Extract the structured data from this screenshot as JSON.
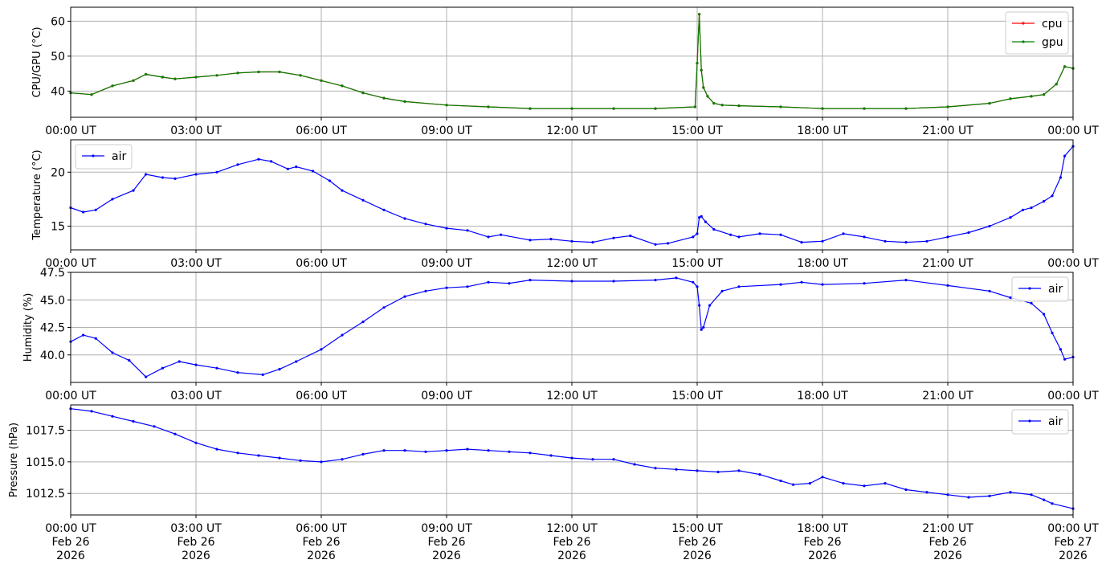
{
  "figure": {
    "x_start_hours": 0,
    "x_end_hours": 24,
    "x_tick_labels": [
      "00:00 UT",
      "03:00 UT",
      "06:00 UT",
      "09:00 UT",
      "12:00 UT",
      "15:00 UT",
      "18:00 UT",
      "21:00 UT",
      "00:00 UT"
    ],
    "x_tick_date_labels": [
      "Feb 26",
      "Feb 26",
      "Feb 26",
      "Feb 26",
      "Feb 26",
      "Feb 26",
      "Feb 26",
      "Feb 26",
      "Feb 27"
    ],
    "x_tick_year_labels": [
      "2026",
      "2026",
      "2026",
      "2026",
      "2026",
      "2026",
      "2026",
      "2026",
      "2026"
    ],
    "colors": {
      "cpu": "#ff0000",
      "gpu": "#008000",
      "air": "#0000ff",
      "grid": "#b0b0b0"
    }
  },
  "chart_data": [
    {
      "type": "line",
      "ylabel": "CPU/GPU (°C)",
      "ylim": [
        32.5,
        64
      ],
      "yticks": [
        40,
        50,
        60
      ],
      "grid": true,
      "legend": "upper right",
      "x_unit": "hours since 2026-02-26 00:00 UT",
      "series": [
        {
          "name": "cpu",
          "color": "#ff0000",
          "x": [
            0,
            0.5,
            1,
            1.5,
            1.8,
            2.2,
            2.5,
            3,
            3.5,
            4,
            4.5,
            5,
            5.5,
            6,
            6.5,
            7,
            7.5,
            8,
            9,
            10,
            11,
            12,
            13,
            14,
            14.95,
            15,
            15.05,
            15.1,
            15.15,
            15.25,
            15.4,
            15.6,
            16,
            17,
            18,
            19,
            20,
            21,
            22,
            22.5,
            23,
            23.3,
            23.6,
            23.8,
            24
          ],
          "y": [
            39.5,
            39,
            41.5,
            43,
            44.8,
            44,
            43.5,
            44,
            44.5,
            45.2,
            45.5,
            45.5,
            44.5,
            43,
            41.5,
            39.5,
            38,
            37,
            36,
            35.5,
            35,
            35,
            35,
            35,
            35.5,
            48,
            62,
            46,
            41,
            38.5,
            36.5,
            36,
            35.8,
            35.5,
            35,
            35,
            35,
            35.5,
            36.5,
            37.8,
            38.5,
            39,
            42,
            47,
            46.5
          ]
        },
        {
          "name": "gpu",
          "color": "#008000",
          "x": [
            0,
            0.5,
            1,
            1.5,
            1.8,
            2.2,
            2.5,
            3,
            3.5,
            4,
            4.5,
            5,
            5.5,
            6,
            6.5,
            7,
            7.5,
            8,
            9,
            10,
            11,
            12,
            13,
            14,
            14.95,
            15,
            15.05,
            15.1,
            15.15,
            15.25,
            15.4,
            15.6,
            16,
            17,
            18,
            19,
            20,
            21,
            22,
            22.5,
            23,
            23.3,
            23.6,
            23.8,
            24
          ],
          "y": [
            39.5,
            39,
            41.5,
            43,
            44.8,
            44,
            43.5,
            44,
            44.5,
            45.2,
            45.5,
            45.5,
            44.5,
            43,
            41.5,
            39.5,
            38,
            37,
            36,
            35.5,
            35,
            35,
            35,
            35,
            35.5,
            48,
            62,
            46,
            41,
            38.5,
            36.5,
            36,
            35.8,
            35.5,
            35,
            35,
            35,
            35.5,
            36.5,
            37.8,
            38.5,
            39,
            42,
            47,
            46.5
          ]
        }
      ]
    },
    {
      "type": "line",
      "ylabel": "Temperature (°C)",
      "ylim": [
        12.8,
        23
      ],
      "yticks": [
        15,
        20
      ],
      "grid": true,
      "legend": "upper left",
      "x_unit": "hours since 2026-02-26 00:00 UT",
      "series": [
        {
          "name": "air",
          "color": "#0000ff",
          "x": [
            0,
            0.3,
            0.6,
            1,
            1.5,
            1.8,
            2.2,
            2.5,
            3,
            3.5,
            4,
            4.5,
            4.8,
            5.2,
            5.4,
            5.8,
            6.2,
            6.5,
            7,
            7.5,
            8,
            8.5,
            9,
            9.5,
            10,
            10.3,
            11,
            11.5,
            12,
            12.5,
            13,
            13.4,
            14,
            14.3,
            14.9,
            15,
            15.05,
            15.1,
            15.2,
            15.4,
            15.8,
            16,
            16.5,
            17,
            17.5,
            18,
            18.5,
            19,
            19.5,
            20,
            20.5,
            21,
            21.5,
            22,
            22.5,
            22.8,
            23,
            23.3,
            23.5,
            23.7,
            23.8,
            24
          ],
          "y": [
            16.7,
            16.3,
            16.5,
            17.5,
            18.3,
            19.8,
            19.5,
            19.4,
            19.8,
            20.0,
            20.7,
            21.2,
            21.0,
            20.3,
            20.5,
            20.1,
            19.2,
            18.3,
            17.4,
            16.5,
            15.7,
            15.2,
            14.8,
            14.6,
            14.0,
            14.2,
            13.7,
            13.8,
            13.6,
            13.5,
            13.9,
            14.1,
            13.3,
            13.4,
            14.0,
            14.3,
            15.8,
            15.9,
            15.4,
            14.7,
            14.2,
            14.0,
            14.3,
            14.2,
            13.5,
            13.6,
            14.3,
            14.0,
            13.6,
            13.5,
            13.6,
            14.0,
            14.4,
            15.0,
            15.8,
            16.5,
            16.7,
            17.3,
            17.8,
            19.5,
            21.5,
            22.4
          ]
        }
      ]
    },
    {
      "type": "line",
      "ylabel": "Humidity (%)",
      "ylim": [
        37.5,
        47.5
      ],
      "yticks": [
        40.0,
        42.5,
        45.0,
        47.5
      ],
      "ytick_labels": [
        "40.0",
        "42.5",
        "45.0",
        "47.5"
      ],
      "grid": true,
      "legend": "upper right",
      "x_unit": "hours since 2026-02-26 00:00 UT",
      "series": [
        {
          "name": "air",
          "color": "#0000ff",
          "x": [
            0,
            0.3,
            0.6,
            1,
            1.4,
            1.8,
            2.2,
            2.6,
            3,
            3.5,
            4,
            4.6,
            5,
            5.4,
            6,
            6.5,
            7,
            7.5,
            8,
            8.5,
            9,
            9.5,
            10,
            10.5,
            11,
            12,
            13,
            14,
            14.5,
            14.9,
            15,
            15.05,
            15.1,
            15.15,
            15.3,
            15.6,
            16,
            17,
            17.5,
            18,
            19,
            20,
            21,
            22,
            22.5,
            23,
            23.3,
            23.5,
            23.7,
            23.8,
            24
          ],
          "y": [
            41.2,
            41.8,
            41.5,
            40.2,
            39.5,
            38.0,
            38.8,
            39.4,
            39.1,
            38.8,
            38.4,
            38.2,
            38.7,
            39.4,
            40.5,
            41.8,
            43.0,
            44.3,
            45.3,
            45.8,
            46.1,
            46.2,
            46.6,
            46.5,
            46.8,
            46.7,
            46.7,
            46.8,
            47.0,
            46.6,
            46.2,
            44.5,
            42.3,
            42.5,
            44.5,
            45.8,
            46.2,
            46.4,
            46.6,
            46.4,
            46.5,
            46.8,
            46.3,
            45.8,
            45.2,
            44.7,
            43.7,
            42.0,
            40.5,
            39.6,
            39.8
          ]
        }
      ]
    },
    {
      "type": "line",
      "ylabel": "Pressure (hPa)",
      "ylim": [
        1010.8,
        1019.5
      ],
      "yticks": [
        1012.5,
        1015.0,
        1017.5
      ],
      "ytick_labels": [
        "1012.5",
        "1015.0",
        "1017.5"
      ],
      "grid": true,
      "legend": "upper right",
      "x_unit": "hours since 2026-02-26 00:00 UT",
      "series": [
        {
          "name": "air",
          "color": "#0000ff",
          "x": [
            0,
            0.5,
            1,
            1.5,
            2,
            2.5,
            3,
            3.5,
            4,
            4.5,
            5,
            5.5,
            6,
            6.5,
            7,
            7.5,
            8,
            8.5,
            9,
            9.5,
            10,
            10.5,
            11,
            11.5,
            12,
            12.5,
            13,
            13.5,
            14,
            14.5,
            15,
            15.5,
            16,
            16.5,
            17,
            17.3,
            17.7,
            18,
            18.5,
            19,
            19.5,
            20,
            20.5,
            21,
            21.5,
            22,
            22.5,
            23,
            23.3,
            23.5,
            24
          ],
          "y": [
            1019.2,
            1019.0,
            1018.6,
            1018.2,
            1017.8,
            1017.2,
            1016.5,
            1016.0,
            1015.7,
            1015.5,
            1015.3,
            1015.1,
            1015.0,
            1015.2,
            1015.6,
            1015.9,
            1015.9,
            1015.8,
            1015.9,
            1016.0,
            1015.9,
            1015.8,
            1015.7,
            1015.5,
            1015.3,
            1015.2,
            1015.2,
            1014.8,
            1014.5,
            1014.4,
            1014.3,
            1014.2,
            1014.3,
            1014.0,
            1013.5,
            1013.2,
            1013.3,
            1013.8,
            1013.3,
            1013.1,
            1013.3,
            1012.8,
            1012.6,
            1012.4,
            1012.2,
            1012.3,
            1012.6,
            1012.4,
            1012.0,
            1011.7,
            1011.3
          ]
        }
      ]
    }
  ]
}
